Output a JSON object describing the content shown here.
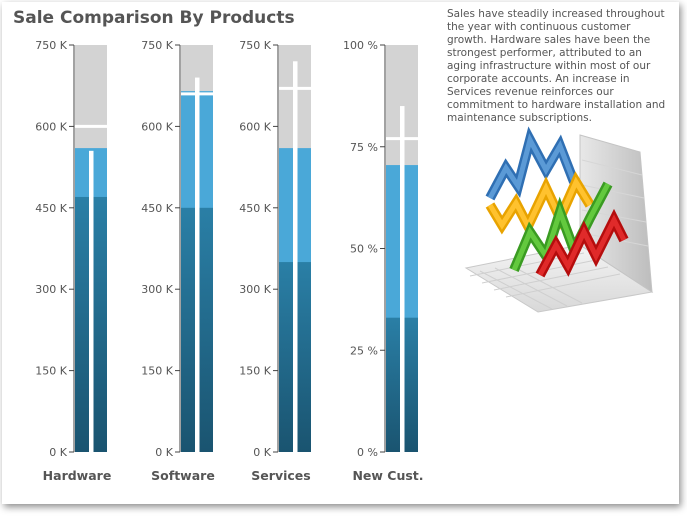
{
  "title": "Sale Comparison By Products",
  "description": "Sales have steadily increased throughout the year with continuous customer growth. Hardware sales have been the strongest performer, attributed to an aging infrastructure within most of our corporate accounts. An increase in Services revenue reinforces our commitment to hardware installation and maintenance subscriptions.",
  "image_icon": "3d-line-chart-illustration-icon",
  "colors": {
    "track": "#d3d3d3",
    "band_light": "#4aa8d8",
    "band_dark_top": "#2a7fa6",
    "band_dark_bottom": "#1a5470",
    "marker": "#ffffff"
  },
  "chart_data": [
    {
      "type": "bullet",
      "category": "Hardware",
      "ylim": [
        0,
        750
      ],
      "ticks": [
        "0 K",
        "150 K",
        "300 K",
        "450 K",
        "600 K",
        "750 K"
      ],
      "tick_values": [
        0,
        150,
        300,
        450,
        600,
        750
      ],
      "band_dark": 470,
      "band_light": 560,
      "target": 600,
      "actual": 555
    },
    {
      "type": "bullet",
      "category": "Software",
      "ylim": [
        0,
        750
      ],
      "ticks": [
        "0 K",
        "150 K",
        "300 K",
        "450 K",
        "600 K",
        "750 K"
      ],
      "tick_values": [
        0,
        150,
        300,
        450,
        600,
        750
      ],
      "band_dark": 450,
      "band_light": 665,
      "target": 660,
      "actual": 690
    },
    {
      "type": "bullet",
      "category": "Services",
      "ylim": [
        0,
        750
      ],
      "ticks": [
        "0 K",
        "150 K",
        "300 K",
        "450 K",
        "600 K",
        "750 K"
      ],
      "tick_values": [
        0,
        150,
        300,
        450,
        600,
        750
      ],
      "band_dark": 350,
      "band_light": 560,
      "target": 670,
      "actual": 720
    },
    {
      "type": "bullet",
      "category": "New Cust.",
      "ylim": [
        0,
        100
      ],
      "ticks": [
        "0 %",
        "25 %",
        "50 %",
        "75 %",
        "100 %"
      ],
      "tick_values": [
        0,
        25,
        50,
        75,
        100
      ],
      "band_dark": 33,
      "band_light": 70.5,
      "target": 77,
      "actual": 85
    }
  ]
}
